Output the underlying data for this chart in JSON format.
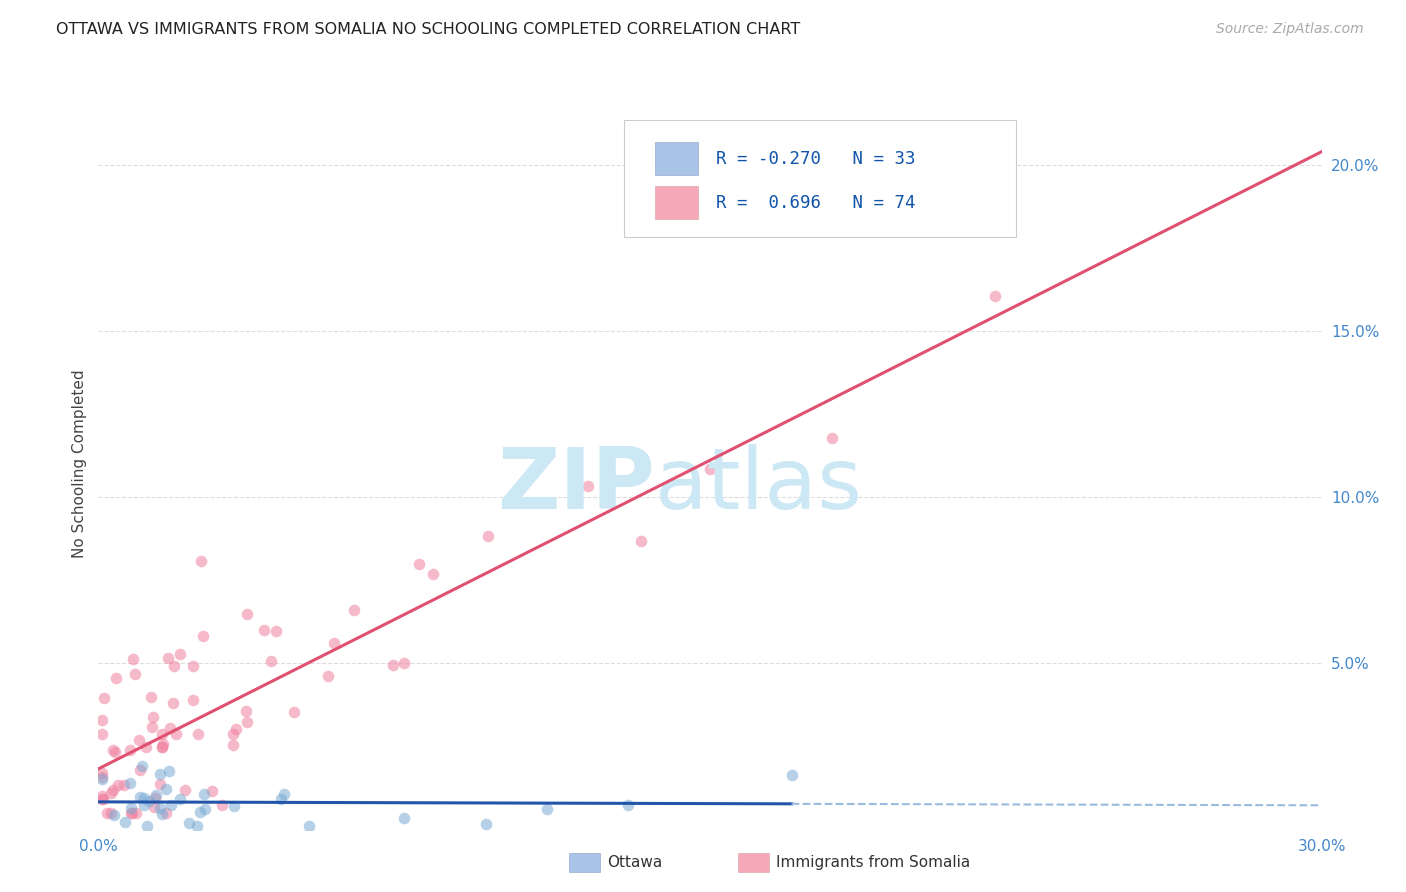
{
  "title": "OTTAWA VS IMMIGRANTS FROM SOMALIA NO SCHOOLING COMPLETED CORRELATION CHART",
  "source": "Source: ZipAtlas.com",
  "ylabel": "No Schooling Completed",
  "xlim": [
    0.0,
    0.3
  ],
  "ylim": [
    0.0,
    0.22
  ],
  "background_color": "#ffffff",
  "grid_color": "#dddddd",
  "watermark_color": "#cce8f4",
  "legend_R1": "-0.270",
  "legend_N1": "33",
  "legend_R2": "0.696",
  "legend_N2": "74",
  "legend_color_blue": "#aac4e8",
  "legend_color_pink": "#f4a8b8",
  "scatter_color_blue": "#7aaad4",
  "scatter_color_pink": "#f080a0",
  "line_color_blue": "#2255aa",
  "line_color_pink": "#e05070",
  "line_dashed_color_blue": "#99bbdd",
  "dot_size": 70,
  "dot_alpha": 0.55,
  "ottawa_seed": 7,
  "somalia_seed": 12
}
